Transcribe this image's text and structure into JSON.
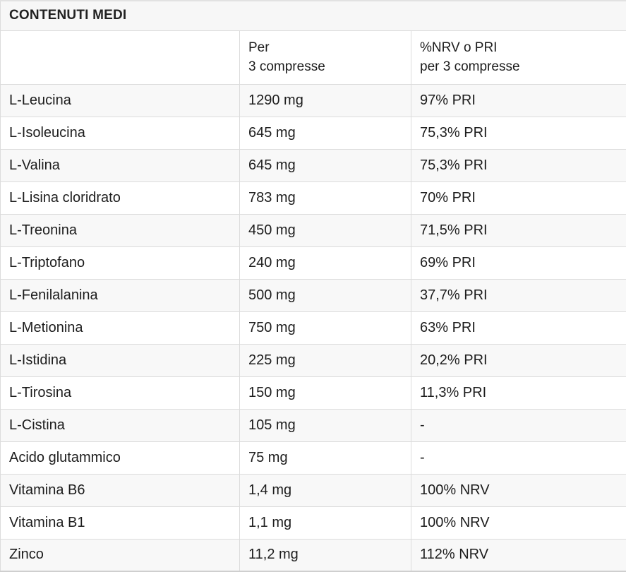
{
  "colors": {
    "title_bg": "#f7f7f7",
    "row_alt_bg": "#f8f8f8",
    "border": "#dcdcdc",
    "text": "#1d1d1d"
  },
  "table": {
    "title": "CONTENUTI MEDI",
    "header": {
      "col1": "",
      "col2": [
        "Per",
        "3 compresse"
      ],
      "col3": [
        "%NRV o PRI",
        "per 3 compresse"
      ]
    },
    "rows": [
      {
        "name": "L-Leucina",
        "amount": "1290 mg",
        "nrv": "97% PRI"
      },
      {
        "name": "L-Isoleucina",
        "amount": "645 mg",
        "nrv": "75,3% PRI"
      },
      {
        "name": "L-Valina",
        "amount": "645 mg",
        "nrv": "75,3% PRI"
      },
      {
        "name": "L-Lisina cloridrato",
        "amount": "783 mg",
        "nrv": "70% PRI"
      },
      {
        "name": "L-Treonina",
        "amount": "450 mg",
        "nrv": "71,5% PRI"
      },
      {
        "name": "L-Triptofano",
        "amount": "240 mg",
        "nrv": "69% PRI"
      },
      {
        "name": "L-Fenilalanina",
        "amount": "500 mg",
        "nrv": "37,7% PRI"
      },
      {
        "name": "L-Metionina",
        "amount": "750 mg",
        "nrv": "63% PRI"
      },
      {
        "name": "L-Istidina",
        "amount": "225 mg",
        "nrv": "20,2% PRI"
      },
      {
        "name": "L-Tirosina",
        "amount": "150 mg",
        "nrv": "11,3% PRI"
      },
      {
        "name": "L-Cistina",
        "amount": "105 mg",
        "nrv": "-"
      },
      {
        "name": "Acido glutammico",
        "amount": "75 mg",
        "nrv": "-"
      },
      {
        "name": "Vitamina B6",
        "amount": "1,4 mg",
        "nrv": "100% NRV"
      },
      {
        "name": "Vitamina B1",
        "amount": "1,1 mg",
        "nrv": "100% NRV"
      },
      {
        "name": "Zinco",
        "amount": "11,2 mg",
        "nrv": "112% NRV"
      }
    ]
  }
}
